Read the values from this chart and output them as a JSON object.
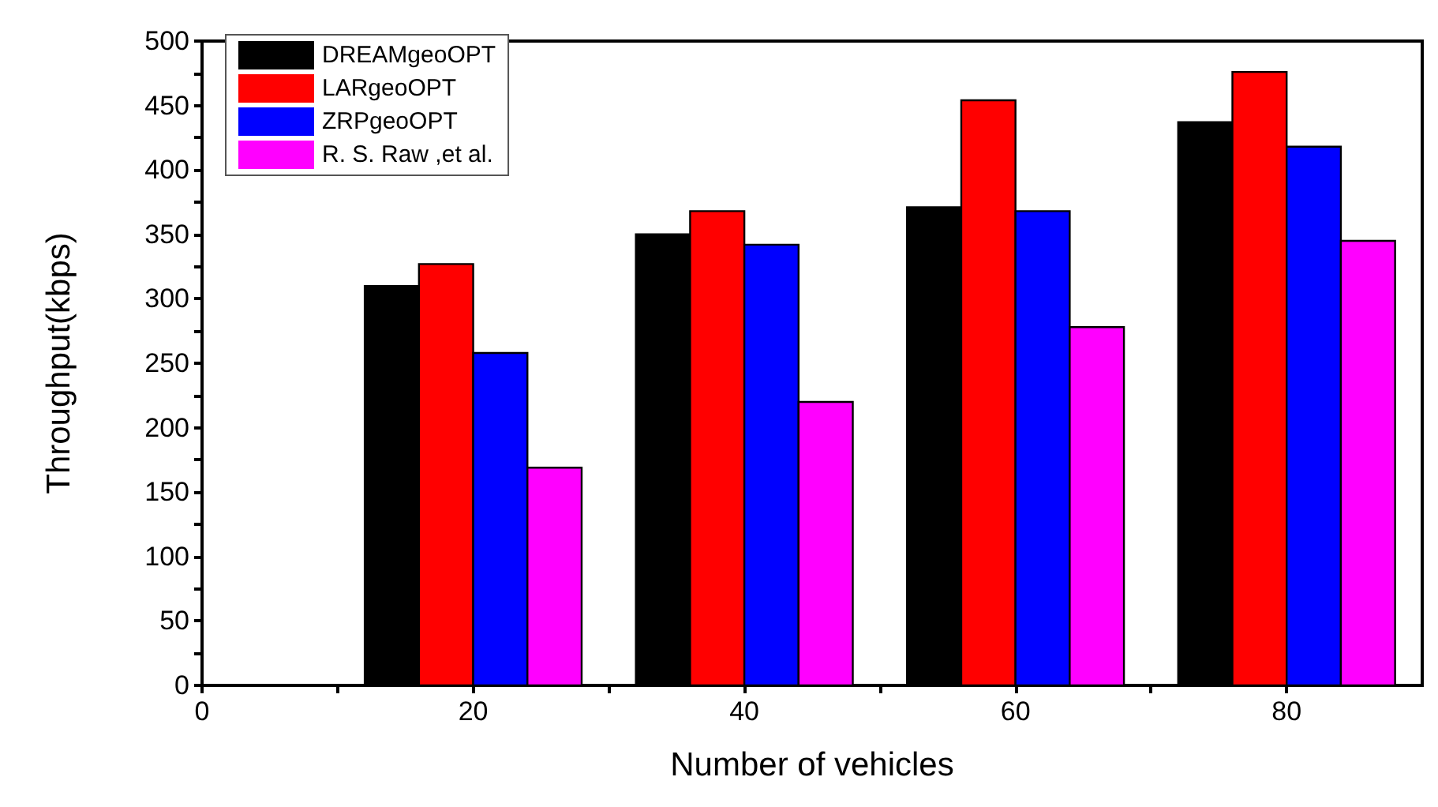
{
  "chart_data": {
    "type": "bar",
    "xlabel": "Number of vehicles",
    "ylabel": "Throughput(kbps)",
    "x": [
      20,
      40,
      60,
      80
    ],
    "series": [
      {
        "name": "DREAMgeoOPT",
        "color": "#000000",
        "values": [
          310,
          350,
          371,
          437
        ]
      },
      {
        "name": "LARgeoOPT",
        "color": "#ff0000",
        "values": [
          327,
          368,
          454,
          476
        ]
      },
      {
        "name": "ZRPgeoOPT",
        "color": "#0000ff",
        "values": [
          258,
          342,
          368,
          418
        ]
      },
      {
        "name": "R. S. Raw ,et al.",
        "color": "#ff00ff",
        "values": [
          169,
          220,
          278,
          345
        ]
      }
    ],
    "xlim": [
      0,
      90
    ],
    "xticks": [
      0,
      {
        "value": 10,
        "label": null
      },
      20,
      {
        "value": 30,
        "label": null
      },
      40,
      {
        "value": 50,
        "label": null
      },
      60,
      {
        "value": 70,
        "label": null
      },
      80
    ],
    "ylim": [
      0,
      500
    ],
    "yticks": [
      0,
      {
        "value": 25,
        "label": null
      },
      50,
      {
        "value": 75,
        "label": null
      },
      100,
      {
        "value": 125,
        "label": null
      },
      150,
      {
        "value": 175,
        "label": null
      },
      200,
      {
        "value": 225,
        "label": null
      },
      250,
      {
        "value": 275,
        "label": null
      },
      300,
      {
        "value": 325,
        "label": null
      },
      350,
      {
        "value": 375,
        "label": null
      },
      400,
      {
        "value": 425,
        "label": null
      },
      450,
      {
        "value": 475,
        "label": null
      },
      500
    ],
    "grid": false,
    "legend": "top left"
  }
}
